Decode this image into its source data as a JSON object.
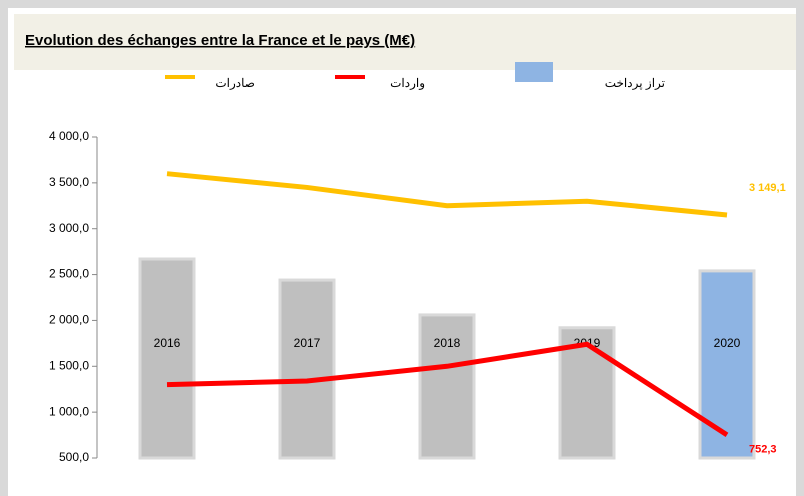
{
  "chart_data": {
    "type": "bar_line",
    "title": "Evolution des échanges entre la France et le pays (M€)",
    "categories": [
      "2016",
      "2017",
      "2018",
      "2019",
      "2020"
    ],
    "series": [
      {
        "name": "تراز پرداخت",
        "kind": "bar",
        "color": "#8eb4e3",
        "colors": [
          "#bfbfbf",
          "#bfbfbf",
          "#bfbfbf",
          "#bfbfbf",
          "#8eb4e3"
        ],
        "values": [
          2670,
          2440,
          2060,
          1920,
          2540
        ]
      },
      {
        "name": "صادرات",
        "kind": "line",
        "color": "#ffc000",
        "values": [
          3600,
          3450,
          3250,
          3300,
          3149.1
        ],
        "value_labels": [
          null,
          null,
          null,
          null,
          "3 149,1"
        ]
      },
      {
        "name": "واردات",
        "kind": "line",
        "color": "#ff0000",
        "values": [
          1300,
          1340,
          1500,
          1740,
          752.3
        ],
        "value_labels": [
          null,
          null,
          null,
          null,
          "752,3"
        ]
      }
    ],
    "ylim": [
      500,
      4000
    ],
    "yticks": [
      {
        "value": 500,
        "label": "500,0"
      },
      {
        "value": 1000,
        "label": "1 000,0"
      },
      {
        "value": 1500,
        "label": "1 500,0"
      },
      {
        "value": 2000,
        "label": "2 000,0"
      },
      {
        "value": 2500,
        "label": "2 500,0"
      },
      {
        "value": 3000,
        "label": "3 000,0"
      },
      {
        "value": 3500,
        "label": "3 500,0"
      },
      {
        "value": 4000,
        "label": "4 000,0"
      }
    ],
    "grid": false
  }
}
